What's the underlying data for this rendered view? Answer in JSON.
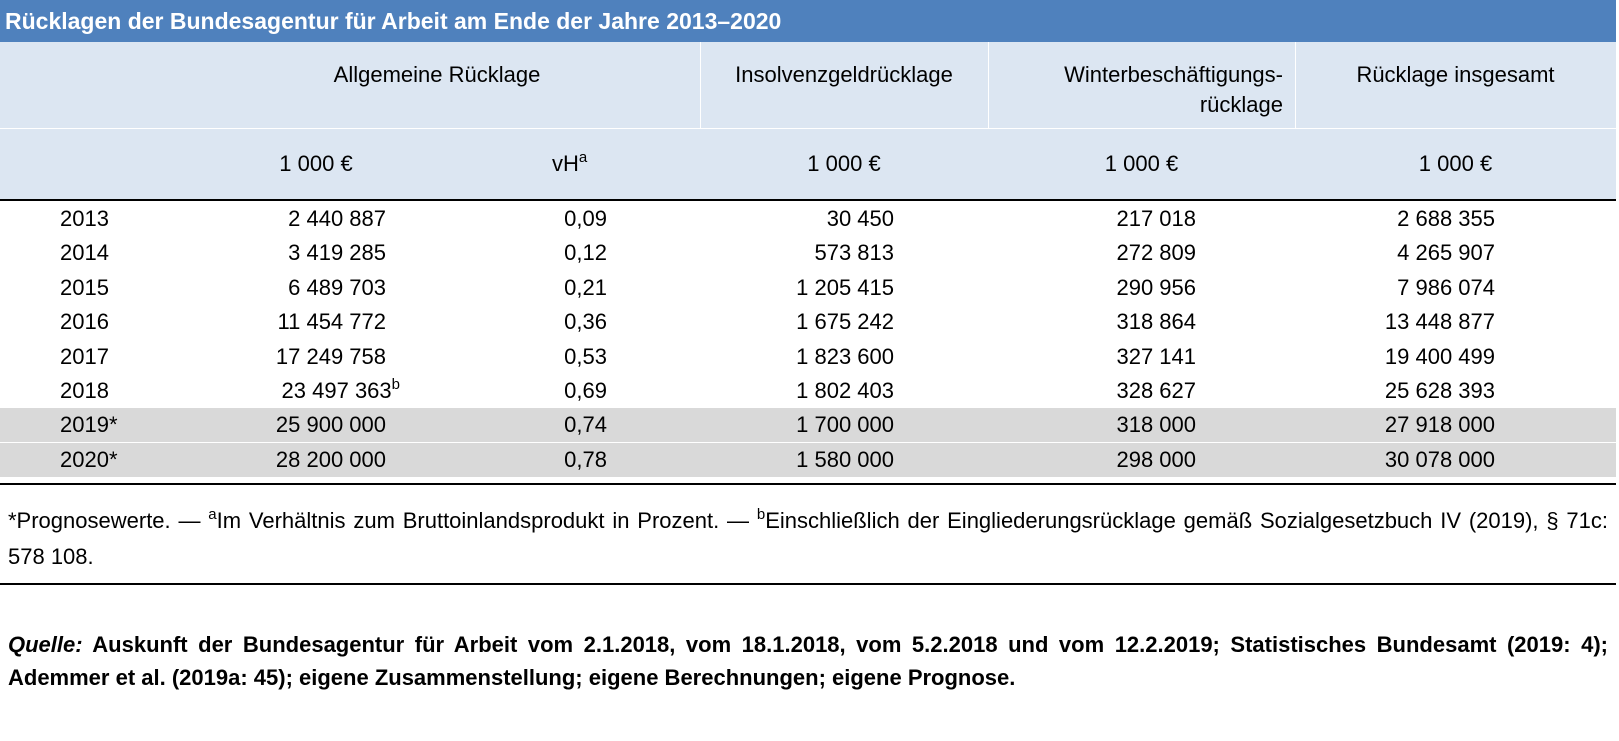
{
  "title": "Rücklagen der Bundesagentur für Arbeit am Ende der Jahre 2013–2020",
  "header": {
    "allgemeine": "Allgemeine Rücklage",
    "insolvenz": "Insolvenzgeldrücklage",
    "winter_line1": "Winterbeschäftigungs-",
    "winter_line2": "rücklage",
    "insgesamt": "Rücklage insgesamt"
  },
  "units": {
    "allg_eur": "1 000 €",
    "allg_vh": "vH",
    "allg_vh_note": "a",
    "insolvenz": "1 000 €",
    "winter": "1 000 €",
    "insgesamt": "1 000 €"
  },
  "rows": [
    {
      "year": "2013",
      "allg": "2 440 887",
      "allg_note": "",
      "vh": "0,09",
      "insolvenz": "30 450",
      "winter": "217 018",
      "gesamt": "2 688 355"
    },
    {
      "year": "2014",
      "allg": "3 419 285",
      "allg_note": "",
      "vh": "0,12",
      "insolvenz": "573 813",
      "winter": "272 809",
      "gesamt": "4 265 907"
    },
    {
      "year": "2015",
      "allg": "6 489 703",
      "allg_note": "",
      "vh": "0,21",
      "insolvenz": "1 205 415",
      "winter": "290 956",
      "gesamt": "7 986 074"
    },
    {
      "year": "2016",
      "allg": "11 454 772",
      "allg_note": "",
      "vh": "0,36",
      "insolvenz": "1 675 242",
      "winter": "318 864",
      "gesamt": "13 448 877"
    },
    {
      "year": "2017",
      "allg": "17 249 758",
      "allg_note": "",
      "vh": "0,53",
      "insolvenz": "1 823 600",
      "winter": "327 141",
      "gesamt": "19 400 499"
    },
    {
      "year": "2018",
      "allg": "23 497 363",
      "allg_note": "b",
      "vh": "0,69",
      "insolvenz": "1 802 403",
      "winter": "328 627",
      "gesamt": "25 628 393"
    },
    {
      "year": "2019*",
      "allg": "25 900 000",
      "allg_note": "",
      "vh": "0,74",
      "insolvenz": "1 700 000",
      "winter": "318 000",
      "gesamt": "27 918 000"
    },
    {
      "year": "2020*",
      "allg": "28 200 000",
      "allg_note": "",
      "vh": "0,78",
      "insolvenz": "1 580 000",
      "winter": "298 000",
      "gesamt": "30 078 000"
    }
  ],
  "footnote": {
    "part1": "*Prognosewerte. — ",
    "sup_a": "a",
    "part2": "Im Verhältnis zum Bruttoinlandsprodukt in Prozent. — ",
    "sup_b": "b",
    "part3": "Einschließlich der Eingliederungsrücklage gemäß Sozialgesetzbuch IV (2019), § 71c: 578 108."
  },
  "source": {
    "label": "Quelle:",
    "text": " Auskunft der Bundesagentur für Arbeit vom 2.1.2018, vom 18.1.2018, vom 5.2.2018 und vom 12.2.2019; Statistisches Bundesamt (2019: 4); Ademmer et al. (2019a: 45); eigene Zusammenstellung; eigene Berechnungen; eigene Prognose."
  },
  "colors": {
    "title_bg": "#4f81bd",
    "header_bg": "#dce6f2",
    "forecast_row_bg": "#d9d9d9"
  }
}
